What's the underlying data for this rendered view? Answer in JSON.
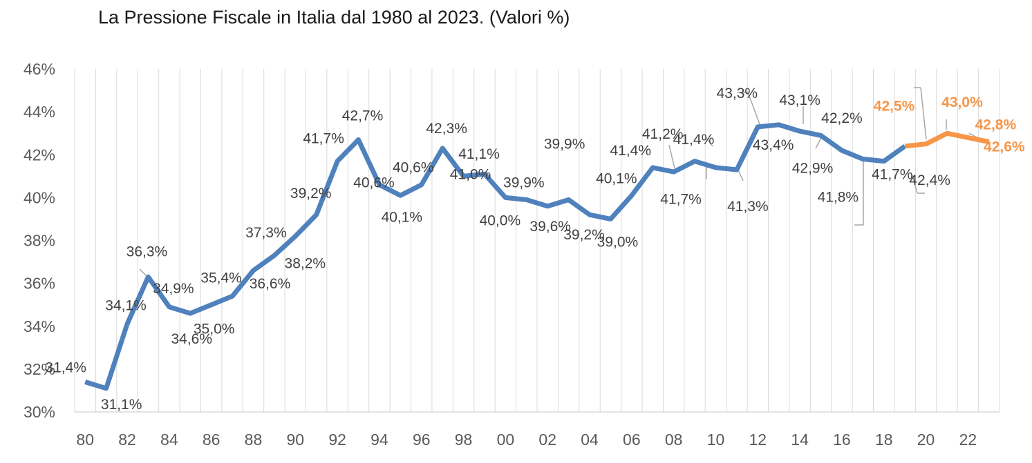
{
  "chart_data": {
    "type": "line",
    "title": "La Pressione Fiscale in Italia dal 1980 al 2023. (Valori %)",
    "xlabel": "",
    "ylabel": "",
    "ylim": [
      30,
      46
    ],
    "y_ticks": [
      "30%",
      "32%",
      "34%",
      "36%",
      "38%",
      "40%",
      "42%",
      "44%",
      "46%"
    ],
    "x_tick_labels": [
      "80",
      "82",
      "84",
      "86",
      "88",
      "90",
      "92",
      "94",
      "96",
      "98",
      "00",
      "02",
      "04",
      "06",
      "08",
      "10",
      "12",
      "14",
      "16",
      "18",
      "20",
      "22"
    ],
    "grid": "vertical",
    "x": [
      1980,
      1981,
      1982,
      1983,
      1984,
      1985,
      1986,
      1987,
      1988,
      1989,
      1990,
      1991,
      1992,
      1993,
      1994,
      1995,
      1996,
      1997,
      1998,
      1999,
      2000,
      2001,
      2002,
      2003,
      2004,
      2005,
      2006,
      2007,
      2008,
      2009,
      2010,
      2011,
      2012,
      2013,
      2014,
      2015,
      2016,
      2017,
      2018,
      2019,
      2020,
      2021,
      2022,
      2023
    ],
    "series": [
      {
        "color": "#4f81bd",
        "x": [
          1980,
          1981,
          1982,
          1983,
          1984,
          1985,
          1986,
          1987,
          1988,
          1989,
          1990,
          1991,
          1992,
          1993,
          1994,
          1995,
          1996,
          1997,
          1998,
          1999,
          2000,
          2001,
          2002,
          2003,
          2004,
          2005,
          2006,
          2007,
          2008,
          2009,
          2010,
          2011,
          2012,
          2013,
          2014,
          2015,
          2016,
          2017,
          2018,
          2019
        ],
        "values": [
          31.4,
          31.1,
          34.1,
          36.3,
          34.9,
          34.6,
          35.0,
          35.4,
          36.6,
          37.3,
          38.2,
          39.2,
          41.7,
          42.7,
          40.6,
          40.1,
          40.6,
          42.3,
          41.0,
          41.1,
          40.0,
          39.9,
          39.6,
          39.9,
          39.2,
          39.0,
          40.1,
          41.4,
          41.2,
          41.7,
          41.4,
          41.3,
          43.3,
          43.4,
          43.1,
          42.9,
          42.2,
          41.8,
          41.7,
          42.4
        ]
      },
      {
        "color": "#f79646",
        "x": [
          2019,
          2020,
          2021,
          2022,
          2023
        ],
        "values": [
          42.4,
          42.5,
          43.0,
          42.8,
          42.6
        ]
      }
    ],
    "data_labels": [
      {
        "year": 1980,
        "text": "31,4%",
        "forecast": false
      },
      {
        "year": 1981,
        "text": "31,1%",
        "forecast": false
      },
      {
        "year": 1982,
        "text": "34,1%",
        "forecast": false
      },
      {
        "year": 1983,
        "text": "36,3%",
        "forecast": false
      },
      {
        "year": 1984,
        "text": "34,9%",
        "forecast": false
      },
      {
        "year": 1985,
        "text": "34,6%",
        "forecast": false
      },
      {
        "year": 1986,
        "text": "35,0%",
        "forecast": false
      },
      {
        "year": 1987,
        "text": "35,4%",
        "forecast": false
      },
      {
        "year": 1988,
        "text": "36,6%",
        "forecast": false
      },
      {
        "year": 1989,
        "text": "37,3%",
        "forecast": false
      },
      {
        "year": 1990,
        "text": "38,2%",
        "forecast": false
      },
      {
        "year": 1991,
        "text": "39,2%",
        "forecast": false
      },
      {
        "year": 1992,
        "text": "41,7%",
        "forecast": false
      },
      {
        "year": 1993,
        "text": "42,7%",
        "forecast": false
      },
      {
        "year": 1994,
        "text": "40,6%",
        "forecast": false
      },
      {
        "year": 1995,
        "text": "40,1%",
        "forecast": false
      },
      {
        "year": 1996,
        "text": "40,6%",
        "forecast": false
      },
      {
        "year": 1997,
        "text": "42,3%",
        "forecast": false
      },
      {
        "year": 1998,
        "text": "41,0%",
        "forecast": false
      },
      {
        "year": 1999,
        "text": "41,1%",
        "forecast": false
      },
      {
        "year": 2000,
        "text": "40,0%",
        "forecast": false
      },
      {
        "year": 2001,
        "text": "39,9%",
        "forecast": false
      },
      {
        "year": 2002,
        "text": "39,6%",
        "forecast": false
      },
      {
        "year": 2003,
        "text": "39,9%",
        "forecast": false
      },
      {
        "year": 2004,
        "text": "39,2%",
        "forecast": false
      },
      {
        "year": 2005,
        "text": "39,0%",
        "forecast": false
      },
      {
        "year": 2006,
        "text": "40,1%",
        "forecast": false
      },
      {
        "year": 2007,
        "text": "41,4%",
        "forecast": false
      },
      {
        "year": 2008,
        "text": "41,2%",
        "forecast": false
      },
      {
        "year": 2009,
        "text": "41,7%",
        "forecast": false
      },
      {
        "year": 2010,
        "text": "41,4%",
        "forecast": false
      },
      {
        "year": 2011,
        "text": "41,3%",
        "forecast": false
      },
      {
        "year": 2012,
        "text": "43,3%",
        "forecast": false
      },
      {
        "year": 2013,
        "text": "43,4%",
        "forecast": false
      },
      {
        "year": 2014,
        "text": "43,1%",
        "forecast": false
      },
      {
        "year": 2015,
        "text": "42,9%",
        "forecast": false
      },
      {
        "year": 2016,
        "text": "42,2%",
        "forecast": false
      },
      {
        "year": 2017,
        "text": "41,8%",
        "forecast": false
      },
      {
        "year": 2018,
        "text": "41,7%",
        "forecast": false
      },
      {
        "year": 2019,
        "text": "42,4%",
        "forecast": false
      },
      {
        "year": 2020,
        "text": "42,5%",
        "forecast": true
      },
      {
        "year": 2021,
        "text": "43,0%",
        "forecast": true
      },
      {
        "year": 2022,
        "text": "42,8%",
        "forecast": true
      },
      {
        "year": 2023,
        "text": "42,6%",
        "forecast": true
      }
    ]
  }
}
